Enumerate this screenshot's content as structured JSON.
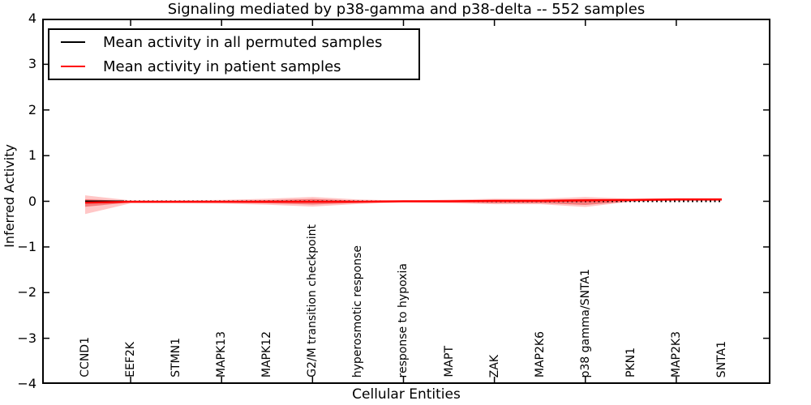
{
  "chart_data": {
    "type": "line",
    "title": "Signaling mediated by p38-gamma and p38-delta -- 552 samples",
    "xlabel": "Cellular Entities",
    "ylabel": "Inferred Activity",
    "ylim": [
      -4,
      4
    ],
    "yticks": [
      4,
      3,
      2,
      1,
      0,
      -1,
      -2,
      -3,
      -4
    ],
    "xtick_positions": [
      1,
      3,
      5,
      7,
      9,
      11,
      13
    ],
    "grid": false,
    "legend_position": "upper-left",
    "categories": [
      "CCND1",
      "EEF2K",
      "STMN1",
      "MAPK13",
      "MAPK12",
      "G2/M transition checkpoint",
      "hyperosmotic response",
      "response to hypoxia",
      "MAPT",
      "ZAK",
      "MAP2K6",
      "p38 gamma/SNTA1",
      "PKN1",
      "MAP2K3",
      "SNTA1"
    ],
    "series": [
      {
        "name": "Mean activity in all permuted samples",
        "color": "#000000",
        "linestyle": "dotted",
        "values": [
          0,
          0,
          0,
          0,
          0,
          0,
          0,
          0,
          0,
          0,
          0,
          0,
          0,
          0,
          0
        ]
      },
      {
        "name": "Mean activity in patient samples",
        "color": "#ff0000",
        "linestyle": "solid",
        "values": [
          -0.03,
          -0.01,
          -0.01,
          -0.01,
          -0.01,
          -0.01,
          -0.01,
          0,
          0,
          0.01,
          0.01,
          0.02,
          0.03,
          0.04,
          0.04
        ]
      }
    ],
    "bands": [
      {
        "name": "outer-confidence-band",
        "color": "#ff0000",
        "opacity": 0.22,
        "upper": [
          0.13,
          0.02,
          0.02,
          0.03,
          0.055,
          0.095,
          0.04,
          0.015,
          0.035,
          0.055,
          0.055,
          0.095,
          0.055,
          0.065,
          0.065
        ],
        "lower": [
          -0.28,
          -0.045,
          -0.045,
          -0.05,
          -0.075,
          -0.115,
          -0.06,
          -0.025,
          -0.04,
          -0.065,
          -0.065,
          -0.125,
          -0.01,
          0.01,
          0.01
        ]
      },
      {
        "name": "inner-confidence-band",
        "color": "#e60000",
        "opacity": 0.38,
        "upper": [
          0.045,
          0.005,
          0.005,
          0.01,
          0.025,
          0.05,
          0.015,
          0.005,
          0.015,
          0.03,
          0.03,
          0.05,
          0.045,
          0.055,
          0.055
        ],
        "lower": [
          -0.12,
          -0.025,
          -0.025,
          -0.03,
          -0.045,
          -0.07,
          -0.035,
          -0.015,
          -0.02,
          -0.04,
          -0.04,
          -0.08,
          0,
          0.02,
          0.02
        ]
      }
    ]
  },
  "legend": {
    "items": [
      {
        "label": "Mean activity in all permuted samples",
        "color": "#000000"
      },
      {
        "label": "Mean activity in patient samples",
        "color": "#ff0000"
      }
    ]
  }
}
